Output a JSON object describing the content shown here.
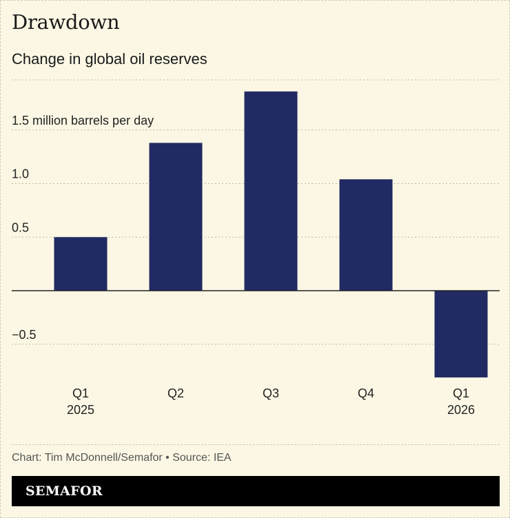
{
  "header": {
    "title": "Drawdown",
    "subtitle": "Change in global oil reserves"
  },
  "footer": {
    "credit": "Chart: Tim McDonnell/Semafor • Source: IEA",
    "brand": "SEMAFOR"
  },
  "colors": {
    "bar": "#222a63",
    "background": "#fbf7e4",
    "grid": "#bdb8a4",
    "zero_line": "#222222"
  },
  "chart_data": {
    "type": "bar",
    "title": "Drawdown",
    "subtitle": "Change in global oil reserves",
    "categories": [
      [
        "Q1",
        "2025"
      ],
      [
        "Q2",
        ""
      ],
      [
        "Q3",
        ""
      ],
      [
        "Q4",
        ""
      ],
      [
        "Q1",
        "2026"
      ]
    ],
    "values": [
      0.5,
      1.38,
      1.86,
      1.04,
      -0.81
    ],
    "yticks": [
      {
        "value": 1.5,
        "label": "1.5 million barrels per day"
      },
      {
        "value": 1.0,
        "label": "1.0"
      },
      {
        "value": 0.5,
        "label": "0.5"
      },
      {
        "value": -0.5,
        "label": "−0.5"
      }
    ],
    "ylim": [
      -0.81,
      2.0
    ],
    "grid": true,
    "xlabel": "",
    "ylabel": ""
  }
}
